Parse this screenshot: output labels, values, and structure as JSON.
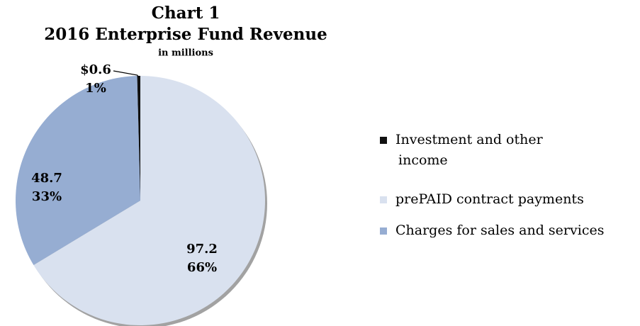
{
  "chart_data": {
    "type": "pie",
    "title": "Chart 1",
    "subtitle": "2016 Enterprise Fund Revenue",
    "note": "in millions",
    "categories": [
      "Investment and other income",
      "prePAID contract payments",
      "Charges for sales and services"
    ],
    "legend_lines": [
      [
        "Investment and other",
        "income"
      ],
      [
        "prePAID contract payments"
      ],
      [
        "Charges for sales and services"
      ]
    ],
    "values": [
      0.6,
      97.2,
      48.7
    ],
    "value_labels": [
      "$0.6",
      "97.2",
      "48.7"
    ],
    "percent_labels": [
      "1%",
      "66%",
      "33%"
    ],
    "colors": [
      "#111111",
      "#d9e1ef",
      "#96add2"
    ],
    "legend": "right"
  }
}
